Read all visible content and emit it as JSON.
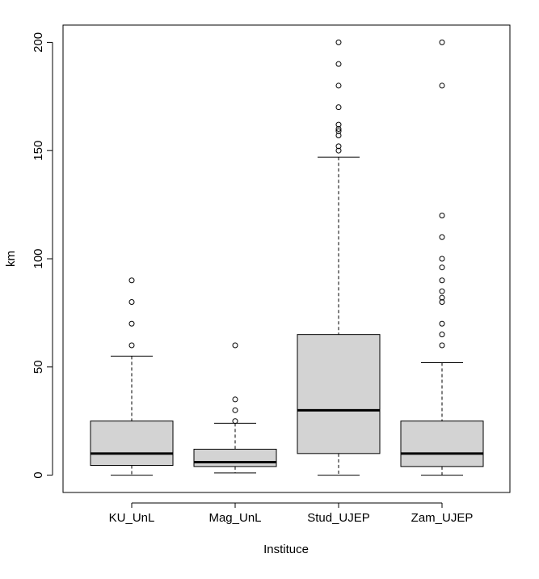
{
  "chart_data": {
    "type": "boxplot",
    "title": "",
    "xlabel": "Instituce",
    "ylabel": "km",
    "ylim": [
      -8,
      208
    ],
    "yticks": [
      0,
      50,
      100,
      150,
      200
    ],
    "grid": false,
    "legend": "none",
    "colors": {
      "box_fill": "#d3d3d3",
      "stroke": "#000000",
      "background": "#ffffff"
    },
    "categories": [
      "KU_UnL",
      "Mag_UnL",
      "Stud_UJEP",
      "Zam_UJEP"
    ],
    "boxes": [
      {
        "name": "KU_UnL",
        "whisker_low": 0,
        "q1": 4.5,
        "median": 10,
        "q3": 25,
        "whisker_high": 55,
        "outliers": [
          60,
          70,
          80,
          90
        ]
      },
      {
        "name": "Mag_UnL",
        "whisker_low": 1,
        "q1": 4,
        "median": 6,
        "q3": 12,
        "whisker_high": 24,
        "outliers": [
          25,
          30,
          35,
          60
        ]
      },
      {
        "name": "Stud_UJEP",
        "whisker_low": 0,
        "q1": 10,
        "median": 30,
        "q3": 65,
        "whisker_high": 147,
        "outliers": [
          150,
          152,
          157,
          159,
          160,
          162,
          170,
          180,
          190,
          200
        ]
      },
      {
        "name": "Zam_UJEP",
        "whisker_low": 0,
        "q1": 4,
        "median": 10,
        "q3": 25,
        "whisker_high": 52,
        "outliers": [
          60,
          65,
          70,
          80,
          82,
          85,
          90,
          96,
          100,
          110,
          120,
          180,
          200
        ]
      }
    ]
  }
}
